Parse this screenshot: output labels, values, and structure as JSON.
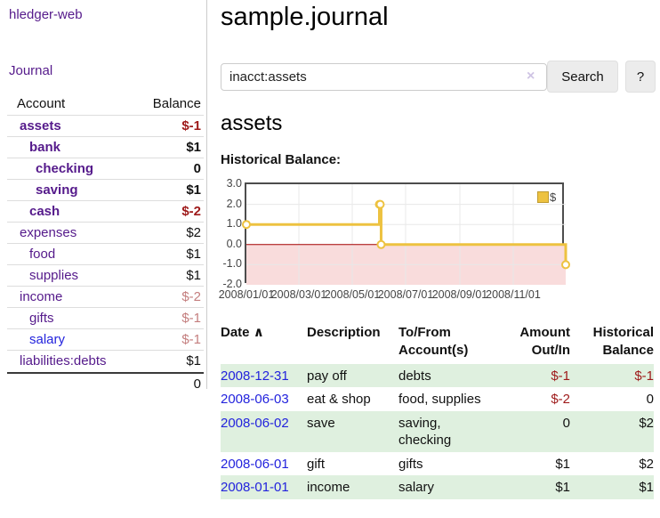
{
  "app": {
    "title": "hledger-web"
  },
  "sidebar": {
    "journal_link": "Journal",
    "accounts_table": {
      "headers": {
        "account": "Account",
        "balance": "Balance"
      },
      "rows": [
        {
          "name": "assets",
          "balance": "$-1"
        },
        {
          "name": "bank",
          "balance": "$1"
        },
        {
          "name": "checking",
          "balance": "0"
        },
        {
          "name": "saving",
          "balance": "$1"
        },
        {
          "name": "cash",
          "balance": "$-2"
        },
        {
          "name": "expenses",
          "balance": "$2"
        },
        {
          "name": "food",
          "balance": "$1"
        },
        {
          "name": "supplies",
          "balance": "$1"
        },
        {
          "name": "income",
          "balance": "$-2"
        },
        {
          "name": "gifts",
          "balance": "$-1"
        },
        {
          "name": "salary",
          "balance": "$-1"
        },
        {
          "name": "liabilities:debts",
          "balance": "$1"
        }
      ],
      "total": "0"
    }
  },
  "main": {
    "title": "sample.journal",
    "search": {
      "value": "inacct:assets",
      "clear_icon": "×",
      "search_button": "Search",
      "help_button": "?"
    },
    "account_heading": "assets",
    "chart_label": "Historical Balance:"
  },
  "chart_data": {
    "type": "line",
    "title": "Historical Balance",
    "xlabel": "",
    "ylabel": "",
    "ylim": [
      -2,
      3
    ],
    "x_range": [
      "2008-01-01",
      "2008-12-31"
    ],
    "grid": true,
    "legend_position": "top-right",
    "legend_label": "$",
    "series": [
      {
        "name": "$",
        "color": "#edc240",
        "step": true,
        "points": [
          {
            "date": "2008-01-01",
            "value": 1
          },
          {
            "date": "2008-06-01",
            "value": 2
          },
          {
            "date": "2008-06-02",
            "value": 2
          },
          {
            "date": "2008-06-03",
            "value": 0
          },
          {
            "date": "2008-12-31",
            "value": -1
          }
        ]
      }
    ],
    "y_ticks": [
      {
        "value": 3,
        "label": "3.0"
      },
      {
        "value": 2,
        "label": "2.0"
      },
      {
        "value": 1,
        "label": "1.0"
      },
      {
        "value": 0,
        "label": "0.0"
      },
      {
        "value": -1,
        "label": "-1.0"
      },
      {
        "value": -2,
        "label": "-2.0"
      }
    ],
    "x_ticks": [
      {
        "date": "2008-01-01",
        "label": "2008/01/01"
      },
      {
        "date": "2008-03-01",
        "label": "2008/03/01"
      },
      {
        "date": "2008-05-01",
        "label": "2008/05/01"
      },
      {
        "date": "2008-07-01",
        "label": "2008/07/01"
      },
      {
        "date": "2008-09-01",
        "label": "2008/09/01"
      },
      {
        "date": "2008-11-01",
        "label": "2008/11/01"
      }
    ],
    "negative_region_color": "#f9dcdc",
    "zero_line_color": "#a40000",
    "grid_color": "#e8e8e8"
  },
  "register": {
    "headers": {
      "date": "Date",
      "sort_icon": "∧",
      "description": "Description",
      "account": "To/From Account(s)",
      "amount": "Amount Out/In",
      "balance": "Historical Balance"
    },
    "rows": [
      {
        "date": "2008-12-31",
        "description": "pay off",
        "account": "debts",
        "amount": "$-1",
        "balance": "$-1"
      },
      {
        "date": "2008-06-03",
        "description": "eat & shop",
        "account": "food, supplies",
        "amount": "$-2",
        "balance": "0"
      },
      {
        "date": "2008-06-02",
        "description": "save",
        "account": "saving, checking",
        "amount": "0",
        "balance": "$2"
      },
      {
        "date": "2008-06-01",
        "description": "gift",
        "account": "gifts",
        "amount": "$1",
        "balance": "$2"
      },
      {
        "date": "2008-01-01",
        "description": "income",
        "account": "salary",
        "amount": "$1",
        "balance": "$1"
      }
    ]
  },
  "colors": {
    "link_purple": "#551a8b",
    "link_blue": "#2323dd",
    "negative_strong": "#9e1a1a",
    "negative_muted": "#c47e7e",
    "row_stripe_green": "#dff0df",
    "series_yellow": "#edc240"
  }
}
